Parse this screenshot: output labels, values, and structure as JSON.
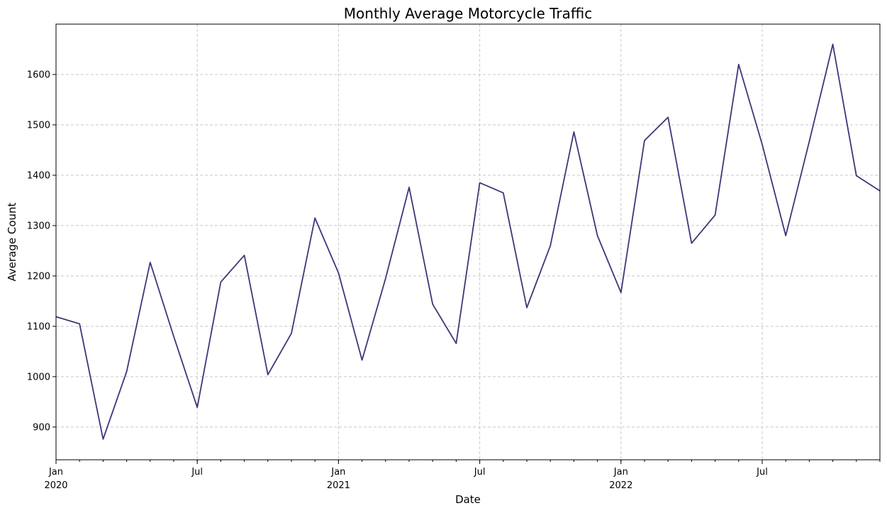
{
  "chart_data": {
    "type": "line",
    "title": "Monthly Average Motorcycle Traffic",
    "xlabel": "Date",
    "ylabel": "Average Count",
    "xlim": [
      "2020-01",
      "2022-12"
    ],
    "ylim": [
      835,
      1700
    ],
    "grid": true,
    "line_color": "#3e3679",
    "y_ticks": [
      900,
      1000,
      1100,
      1200,
      1300,
      1400,
      1500,
      1600
    ],
    "x_major_ticks": [
      {
        "date": "2020-01",
        "label": "Jan",
        "sublabel": "2020"
      },
      {
        "date": "2020-07",
        "label": "Jul",
        "sublabel": ""
      },
      {
        "date": "2021-01",
        "label": "Jan",
        "sublabel": "2021"
      },
      {
        "date": "2021-07",
        "label": "Jul",
        "sublabel": ""
      },
      {
        "date": "2022-01",
        "label": "Jan",
        "sublabel": "2022"
      },
      {
        "date": "2022-07",
        "label": "Jul",
        "sublabel": ""
      }
    ],
    "series": [
      {
        "x": [
          "2020-01",
          "2020-02",
          "2020-03",
          "2020-04",
          "2020-05",
          "2020-06",
          "2020-07",
          "2020-08",
          "2020-09",
          "2020-10",
          "2020-11",
          "2020-12",
          "2021-01",
          "2021-02",
          "2021-03",
          "2021-04",
          "2021-05",
          "2021-06",
          "2021-07",
          "2021-08",
          "2021-09",
          "2021-10",
          "2021-11",
          "2021-12",
          "2022-01",
          "2022-02",
          "2022-03",
          "2022-04",
          "2022-05",
          "2022-06",
          "2022-07",
          "2022-08",
          "2022-09",
          "2022-10",
          "2022-11",
          "2022-12"
        ],
        "values": [
          1119,
          1105,
          876,
          1010,
          1227,
          1080,
          939,
          1188,
          1241,
          1004,
          1086,
          1315,
          1206,
          1033,
          1195,
          1376,
          1144,
          1066,
          1385,
          1365,
          1137,
          1260,
          1486,
          1280,
          1167,
          1469,
          1515,
          1265,
          1321,
          1620,
          1461,
          1280,
          1467,
          1660,
          1399,
          1369
        ]
      }
    ]
  }
}
